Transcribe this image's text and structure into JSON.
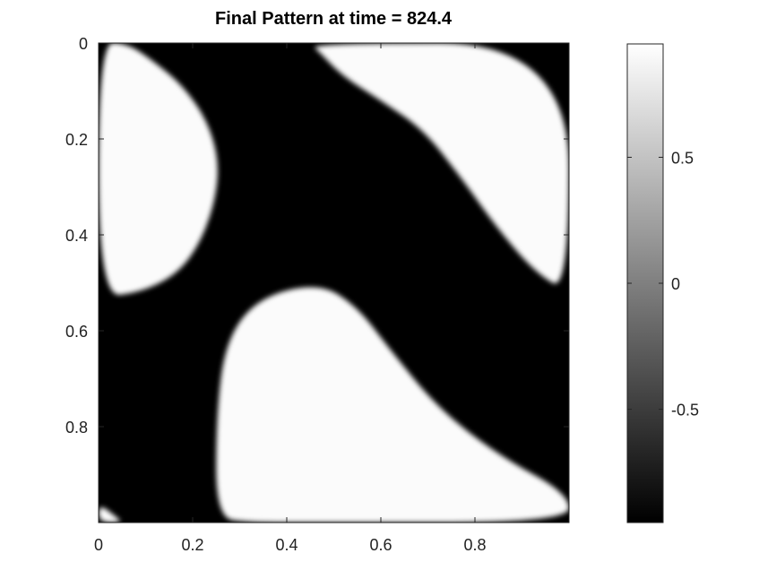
{
  "chart_data": {
    "type": "heatmap",
    "title": "Final Pattern at time = 824.4",
    "xlabel": "",
    "ylabel": "",
    "xlim": [
      0,
      1
    ],
    "ylim": [
      0,
      1
    ],
    "y_axis_direction": "downward",
    "x_ticks": [
      {
        "value": 0,
        "label": "0"
      },
      {
        "value": 0.2,
        "label": "0.2"
      },
      {
        "value": 0.4,
        "label": "0.4"
      },
      {
        "value": 0.6,
        "label": "0.6"
      },
      {
        "value": 0.8,
        "label": "0.8"
      }
    ],
    "y_ticks": [
      {
        "value": 0,
        "label": "0"
      },
      {
        "value": 0.2,
        "label": "0.2"
      },
      {
        "value": 0.4,
        "label": "0.4"
      },
      {
        "value": 0.6,
        "label": "0.6"
      },
      {
        "value": 0.8,
        "label": "0.8"
      }
    ],
    "colormap": "gray",
    "colorbar": {
      "range": [
        -0.95,
        0.95
      ],
      "ticks": [
        {
          "value": 0.5,
          "label": "0.5"
        },
        {
          "value": 0,
          "label": "0"
        },
        {
          "value": -0.5,
          "label": "-0.5"
        }
      ],
      "low_color": "#000000",
      "high_color": "#ffffff"
    },
    "field_value_range": [
      -0.95,
      0.95
    ],
    "white_regions": [
      {
        "name": "upper-left blob",
        "outline_xy": [
          [
            0,
            0.0
          ],
          [
            0.06,
            0.0
          ],
          [
            0.12,
            0.04
          ],
          [
            0.18,
            0.09
          ],
          [
            0.23,
            0.16
          ],
          [
            0.255,
            0.24
          ],
          [
            0.25,
            0.32
          ],
          [
            0.22,
            0.41
          ],
          [
            0.17,
            0.48
          ],
          [
            0.09,
            0.52
          ],
          [
            0,
            0.53
          ]
        ]
      },
      {
        "name": "upper-right band",
        "outline_xy": [
          [
            0.45,
            0
          ],
          [
            1,
            0
          ],
          [
            1,
            0.52
          ],
          [
            0.93,
            0.48
          ],
          [
            0.85,
            0.39
          ],
          [
            0.77,
            0.28
          ],
          [
            0.69,
            0.18
          ],
          [
            0.6,
            0.12
          ],
          [
            0.52,
            0.07
          ],
          [
            0.47,
            0.02
          ]
        ]
      },
      {
        "name": "center-lower blob",
        "outline_xy": [
          [
            0.25,
            0.99
          ],
          [
            0.25,
            0.78
          ],
          [
            0.27,
            0.62
          ],
          [
            0.34,
            0.53
          ],
          [
            0.47,
            0.5
          ],
          [
            0.55,
            0.55
          ],
          [
            0.62,
            0.64
          ],
          [
            0.72,
            0.76
          ],
          [
            0.85,
            0.86
          ],
          [
            1,
            0.94
          ],
          [
            1,
            1
          ],
          [
            0.44,
            1
          ],
          [
            0.32,
            1
          ]
        ]
      },
      {
        "name": "bottom-left corner",
        "outline_xy": [
          [
            0,
            0.96
          ],
          [
            0.04,
            0.99
          ],
          [
            0.05,
            1
          ],
          [
            0,
            1
          ]
        ]
      }
    ]
  }
}
